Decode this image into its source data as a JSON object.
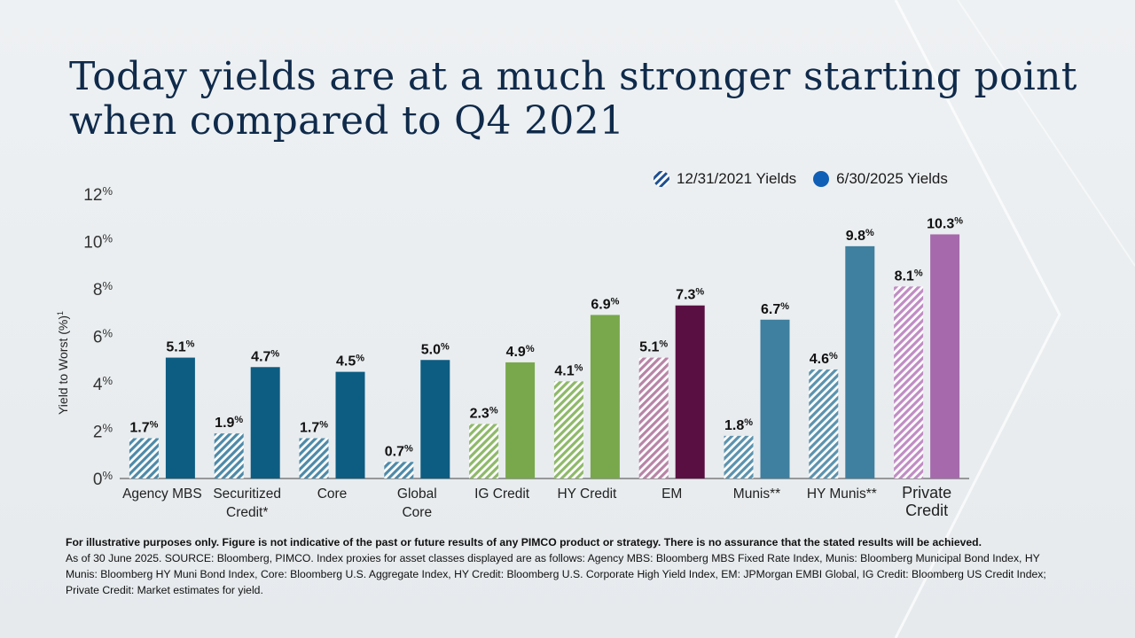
{
  "slide": {
    "title_line1": "Today yields are at a much stronger starting point",
    "title_line2": "when compared to Q4 2021"
  },
  "legend": {
    "series1": "12/31/2021 Yields",
    "series2": "6/30/2025 Yields"
  },
  "chart_data": {
    "type": "bar",
    "ylabel": "Yield to Worst (%)",
    "ylabel_superscript": "1",
    "ylim": [
      0,
      12
    ],
    "yticks": [
      {
        "num": "0",
        "unit": "%"
      },
      {
        "num": "2",
        "unit": "%"
      },
      {
        "num": "4",
        "unit": "%"
      },
      {
        "num": "6",
        "unit": "%"
      },
      {
        "num": "8",
        "unit": "%"
      },
      {
        "num": "10",
        "unit": "%"
      },
      {
        "num": "12",
        "unit": "%"
      }
    ],
    "grid": false,
    "legend_position": "top-right",
    "categories": [
      [
        "Agency MBS"
      ],
      [
        "Securitized",
        "Credit*"
      ],
      [
        "Core"
      ],
      [
        "Global",
        "Core"
      ],
      [
        "IG Credit"
      ],
      [
        "HY Credit"
      ],
      [
        "EM"
      ],
      [
        "Munis**"
      ],
      [
        "HY Munis**"
      ],
      [
        "Private",
        "Credit"
      ]
    ],
    "series": [
      {
        "name": "12/31/2021 Yields",
        "pattern": "hatched",
        "values": [
          1.7,
          1.9,
          1.7,
          0.7,
          2.3,
          4.1,
          5.1,
          1.8,
          4.6,
          8.1
        ],
        "labels": [
          "1.7",
          "1.9",
          "1.7",
          "0.7",
          "2.3",
          "4.1",
          "5.1",
          "1.8",
          "4.6",
          "8.1"
        ]
      },
      {
        "name": "6/30/2025 Yields",
        "pattern": "solid",
        "values": [
          5.1,
          4.7,
          4.5,
          5.0,
          4.9,
          6.9,
          7.3,
          6.7,
          9.8,
          10.3
        ],
        "labels": [
          "5.1",
          "4.7",
          "4.5",
          "5.0",
          "4.9",
          "6.9",
          "7.3",
          "6.7",
          "9.8",
          "10.3"
        ]
      }
    ],
    "value_suffix": "%",
    "colors": [
      "#0d5c82",
      "#0d5c82",
      "#0d5c82",
      "#0d5c82",
      "#78a84b",
      "#78a84b",
      "#5a0f43",
      "#3f7f9f",
      "#3f7f9f",
      "#a66aac"
    ],
    "light_colors": [
      "#4e8aa8",
      "#4e8aa8",
      "#4e8aa8",
      "#4e8aa8",
      "#8fb96a",
      "#8fb96a",
      "#b784a6",
      "#5c93ae",
      "#5c93ae",
      "#c08dc4"
    ],
    "legend_colors": {
      "hatch": "#1e4f91",
      "solid": "#0f5fb6"
    }
  },
  "footnote": {
    "disclaimer": "For illustrative purposes only. Figure is not indicative of the past or future results of any PIMCO product or strategy. There is no assurance that the stated results will be achieved.",
    "source": "As of 30 June 2025. SOURCE: Bloomberg, PIMCO.  Index proxies for asset classes displayed are as follows: Agency MBS: Bloomberg MBS Fixed Rate Index, Munis: Bloomberg Municipal Bond Index, HY Munis: Bloomberg HY Muni Bond Index, Core: Bloomberg U.S. Aggregate Index, HY Credit: Bloomberg U.S. Corporate High Yield Index, EM: JPMorgan EMBI Global, IG Credit: Bloomberg US Credit Index; Private Credit: Market estimates for yield."
  }
}
